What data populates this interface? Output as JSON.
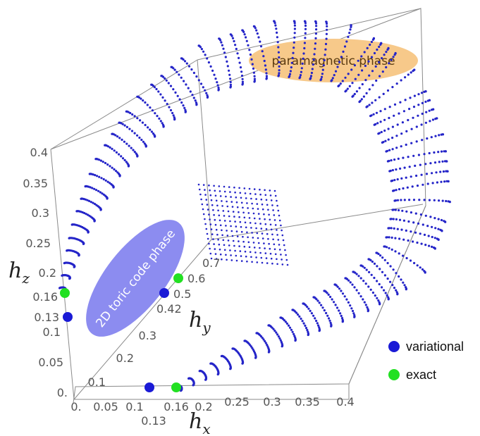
{
  "chart_data": {
    "type": "scatter",
    "kind": "3d-phase-diagram",
    "colors": {
      "surface": "#2424c8",
      "variational": "#1a1ad6",
      "exact": "#22e022",
      "paramagnetic_region": "#f7c98a",
      "toric_region": "#8c8cf0"
    },
    "axes": {
      "x": {
        "label_main": "h",
        "label_sub": "x",
        "range": [
          0,
          0.4
        ],
        "ticks": [
          "0.",
          "0.05",
          "0.1",
          "0.13",
          "0.16",
          "0.2",
          "0.25",
          "0.3",
          "0.35",
          "0.4"
        ]
      },
      "y": {
        "label_main": "h",
        "label_sub": "y",
        "range": [
          0,
          0.7
        ],
        "ticks": [
          "0.1",
          "0.2",
          "0.3",
          "0.42",
          "0.5",
          "0.6",
          "0.7"
        ]
      },
      "z": {
        "label_main": "h",
        "label_sub": "z",
        "range": [
          0,
          0.4
        ],
        "ticks": [
          "0.",
          "0.05",
          "0.1",
          "0.13",
          "0.16",
          "0.2",
          "0.25",
          "0.3",
          "0.35",
          "0.4"
        ]
      }
    },
    "legend": {
      "placement": "right",
      "items": [
        {
          "label": "variational",
          "color": "#1a1ad6"
        },
        {
          "label": "exact",
          "color": "#22e022"
        }
      ]
    },
    "annotations": {
      "paramagnetic": "paramagnetic phase",
      "toric": "2D toric code phase"
    },
    "points": {
      "variational": [
        {
          "axis": "x",
          "value": 0.13
        },
        {
          "axis": "y",
          "value": 0.42
        },
        {
          "axis": "z",
          "value": 0.13
        }
      ],
      "exact": [
        {
          "axis": "x",
          "value": 0.16
        },
        {
          "axis": "y",
          "value": 0.5
        },
        {
          "axis": "z",
          "value": 0.16
        }
      ]
    },
    "grid": false
  }
}
